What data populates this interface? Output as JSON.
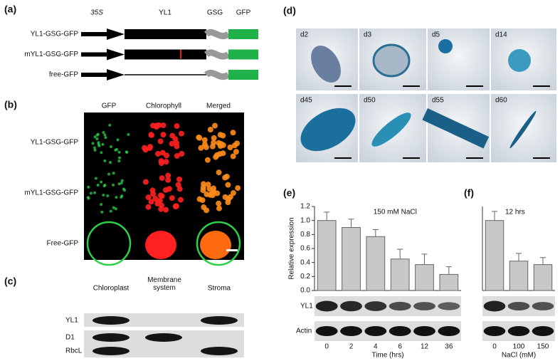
{
  "panel_labels": [
    "(a)",
    "(b)",
    "(c)",
    "(d)",
    "(e)",
    "(f)"
  ],
  "construct": {
    "promoter": "35S",
    "gene": "YL1",
    "linker": "GSG",
    "tag": "GFP",
    "rows": [
      "YL1-GSG-GFP",
      "mYL1-GSG-GFP",
      "free-GFP"
    ]
  },
  "microscopy": {
    "columns": [
      "GFP",
      "Chlorophyll",
      "Merged"
    ],
    "rows": [
      "YL1-GSG-GFP",
      "mYL1-GSG-GFP",
      "Free-GFP"
    ]
  },
  "western": {
    "columns": [
      "Chloroplast",
      "Membrane system",
      "Stroma"
    ],
    "rows": [
      "YL1",
      "D1",
      "RbcL"
    ]
  },
  "stages": [
    "d2",
    "d3",
    "d5",
    "d14",
    "d45",
    "d50",
    "d55",
    "d60"
  ],
  "blot_labels": [
    "YL1",
    "Actin"
  ],
  "chart_data": [
    {
      "type": "bar",
      "title": "150 mM NaCl",
      "x_label": "Time (hrs)",
      "y_label": "Relative expression",
      "categories": [
        "0",
        "2",
        "4",
        "6",
        "12",
        "36"
      ],
      "values": [
        1.0,
        0.9,
        0.77,
        0.45,
        0.37,
        0.23
      ],
      "errors": [
        0.12,
        0.12,
        0.1,
        0.14,
        0.15,
        0.11
      ],
      "color": "#c8c8c8",
      "ylim": [
        0,
        1.2
      ],
      "yticks": [
        {
          "value": 0,
          "label": "0.0"
        },
        0.2,
        0.4,
        0.6,
        0.8,
        {
          "value": 1,
          "label": "1.0"
        },
        1.2
      ]
    },
    {
      "type": "bar",
      "title": "12 hrs",
      "x_label": "NaCl (mM)",
      "categories": [
        "0",
        "100",
        "150"
      ],
      "values": [
        1.0,
        0.42,
        0.37
      ],
      "errors": [
        0.13,
        0.11,
        0.1
      ],
      "color": "#c8c8c8",
      "ylim": [
        0,
        1.2
      ]
    }
  ]
}
